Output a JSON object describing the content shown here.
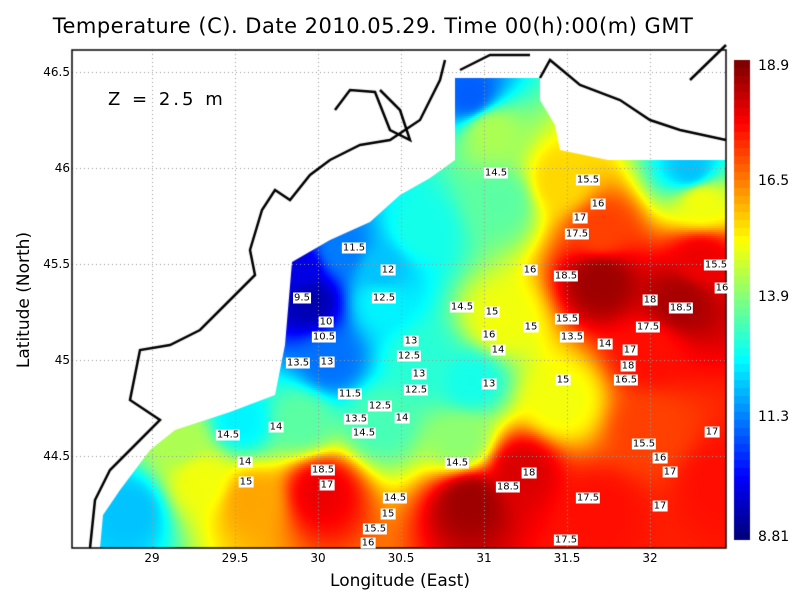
{
  "title": "Temperature (C). Date 2010.05.29. Time 00(h):00(m) GMT",
  "depth_label": "Z = 2.5 m",
  "xlabel": "Longitude (East)",
  "ylabel": "Latitude (North)",
  "xticks": [
    "29",
    "29.5",
    "30",
    "30.5",
    "31",
    "31.5",
    "32"
  ],
  "yticks": [
    "46.5",
    "46",
    "45.5",
    "45",
    "44.5"
  ],
  "colorbar": {
    "ticks": [
      "18.9",
      "16.5",
      "13.9",
      "11.3",
      "8.81"
    ],
    "min": 8.81,
    "max": 18.9,
    "colormap": "jet"
  },
  "contour_labels": [
    "14.5",
    "15.5",
    "16",
    "17",
    "17.5",
    "11.5",
    "12",
    "12.5",
    "9.5",
    "10",
    "10.5",
    "13",
    "12.5",
    "13.5",
    "13",
    "13",
    "12.5",
    "16",
    "18.5",
    "18",
    "17.5",
    "17",
    "18",
    "18.5",
    "14.5",
    "15",
    "16",
    "15.5",
    "15",
    "14",
    "13.5",
    "14",
    "15.5",
    "16",
    "17",
    "16.5",
    "15.5",
    "16",
    "17",
    "13",
    "11.5",
    "12.5",
    "13.5",
    "14.5",
    "14",
    "14",
    "14.5",
    "14",
    "15",
    "15",
    "18.5",
    "17",
    "14.5",
    "15",
    "15.5",
    "16",
    "14.5",
    "18",
    "18.5",
    "17.5",
    "17",
    "17.5"
  ]
}
